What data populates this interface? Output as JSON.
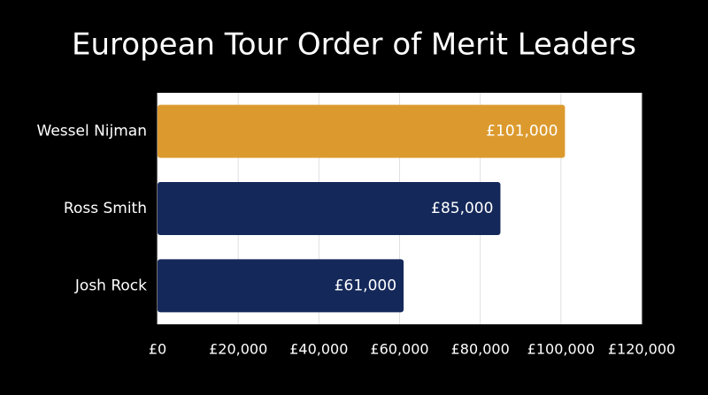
{
  "chart_data": {
    "type": "hbar",
    "title": "European Tour Order of Merit Leaders",
    "categories": [
      "Wessel Nijman",
      "Ross Smith",
      "Josh Rock"
    ],
    "values": [
      101000,
      85000,
      61000
    ],
    "value_labels": [
      "£101,000",
      "£85,000",
      "£61,000"
    ],
    "colors": [
      "#dc9a2e",
      "#14285a",
      "#14285a"
    ],
    "xlim": [
      0,
      120000
    ],
    "xticks": [
      {
        "value": 0,
        "label": "£0"
      },
      {
        "value": 20000,
        "label": "£20,000"
      },
      {
        "value": 40000,
        "label": "£40,000"
      },
      {
        "value": 60000,
        "label": "£60,000"
      },
      {
        "value": 80000,
        "label": "£80,000"
      },
      {
        "value": 100000,
        "label": "£100,000"
      },
      {
        "value": 120000,
        "label": "£120,000"
      }
    ],
    "grid": true
  }
}
